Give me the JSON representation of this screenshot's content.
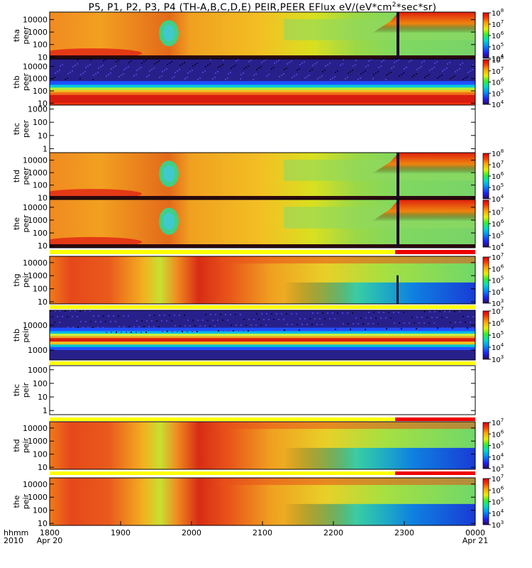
{
  "title": {
    "main": "P5, P1, P2, P3, P4 (TH-A,B,C,D,E) PEIR,PEER EFlux eV/(eV*cm",
    "sup": "2",
    "tail": "*sec*sr)"
  },
  "xaxis": {
    "label_top": "hhmm",
    "label_bottom": "2010",
    "ticks": [
      "1800",
      "1900",
      "2000",
      "2100",
      "2200",
      "2300",
      "0000"
    ],
    "start_date": "Apr 20",
    "end_date": "Apr 21"
  },
  "colors": {
    "flag_yellow": "#ffff00",
    "flag_red": "#ee0000",
    "data_gap": "#ffffff"
  },
  "chart_data": [
    {
      "type": "heatmap",
      "name_a": "tha",
      "name_b": "peer",
      "probe": "tha",
      "species": "peer",
      "yscale": "log",
      "ylim": [
        7,
        40000
      ],
      "yticks": [
        "10",
        "100",
        "1000",
        "10000"
      ],
      "has_data": true,
      "colorbar": {
        "min_exp": 4,
        "max_exp": 8,
        "labels": [
          "8",
          "7",
          "6",
          "5",
          "4"
        ]
      }
    },
    {
      "type": "heatmap",
      "name_a": "thb",
      "name_b": "peer",
      "probe": "thb",
      "species": "peer",
      "yscale": "log",
      "ylim": [
        7,
        40000
      ],
      "yticks": [
        "10",
        "100",
        "1000",
        "10000"
      ],
      "has_data": true,
      "colorbar": {
        "min_exp": 4,
        "max_exp": 8,
        "labels": [
          "8",
          "7",
          "6",
          "5",
          "4"
        ]
      }
    },
    {
      "type": "heatmap",
      "name_a": "thc",
      "name_b": "peer",
      "probe": "thc",
      "species": "peer",
      "yscale": "log",
      "ylim": [
        0.5,
        2000
      ],
      "yticks": [
        "1",
        "10",
        "100",
        "1000"
      ],
      "has_data": false
    },
    {
      "type": "heatmap",
      "name_a": "thd",
      "name_b": "peer",
      "probe": "thd",
      "species": "peer",
      "yscale": "log",
      "ylim": [
        7,
        40000
      ],
      "yticks": [
        "10",
        "100",
        "1000",
        "10000"
      ],
      "has_data": true,
      "colorbar": {
        "min_exp": 4,
        "max_exp": 8,
        "labels": [
          "8",
          "7",
          "6",
          "5",
          "4"
        ]
      }
    },
    {
      "type": "heatmap",
      "name_a": "the",
      "name_b": "peer",
      "probe": "the",
      "species": "peer",
      "yscale": "log",
      "ylim": [
        7,
        40000
      ],
      "yticks": [
        "10",
        "100",
        "1000",
        "10000"
      ],
      "has_data": true,
      "colorbar": {
        "min_exp": 4,
        "max_exp": 8,
        "labels": [
          "7",
          "6",
          "5",
          "4"
        ],
        "label_exps": [
          7,
          6,
          5,
          4
        ]
      }
    },
    {
      "type": "heatmap",
      "name_a": "thg",
      "name_b": "peir",
      "probe": "thg",
      "species": "peir",
      "yscale": "log",
      "ylim": [
        7,
        30000
      ],
      "yticks": [
        "10",
        "100",
        "1000",
        "10000"
      ],
      "has_data": true,
      "colorbar": {
        "min_exp": 3,
        "max_exp": 7,
        "labels": [
          "7",
          "6",
          "5",
          "4",
          "3"
        ]
      }
    },
    {
      "type": "heatmap",
      "name_a": "thb",
      "name_b": "peir",
      "probe": "thb",
      "species": "peir",
      "yscale": "log",
      "ylim": [
        400,
        40000
      ],
      "yticks": [
        "1000",
        "10000"
      ],
      "has_data": true,
      "colorbar": {
        "min_exp": 3,
        "max_exp": 7,
        "labels": [
          "7",
          "6",
          "5",
          "4",
          "3"
        ]
      }
    },
    {
      "type": "heatmap",
      "name_a": "thc",
      "name_b": "peir",
      "probe": "thc",
      "species": "peir",
      "yscale": "log",
      "ylim": [
        0.5,
        2000
      ],
      "yticks": [
        "1",
        "10",
        "100",
        "1000"
      ],
      "has_data": false
    },
    {
      "type": "heatmap",
      "name_a": "thd",
      "name_b": "peir",
      "probe": "thd",
      "species": "peir",
      "yscale": "log",
      "ylim": [
        7,
        30000
      ],
      "yticks": [
        "10",
        "100",
        "1000",
        "10000"
      ],
      "has_data": true,
      "colorbar": {
        "min_exp": 3,
        "max_exp": 7,
        "labels": [
          "7",
          "6",
          "5",
          "4",
          "3"
        ]
      }
    },
    {
      "type": "heatmap",
      "name_a": "the",
      "name_b": "peir",
      "probe": "the",
      "species": "peir",
      "yscale": "log",
      "ylim": [
        7,
        30000
      ],
      "yticks": [
        "10",
        "100",
        "1000",
        "10000"
      ],
      "has_data": true,
      "colorbar": {
        "min_exp": 3,
        "max_exp": 7,
        "labels": [
          "7",
          "6",
          "5",
          "4",
          "3"
        ]
      }
    }
  ]
}
